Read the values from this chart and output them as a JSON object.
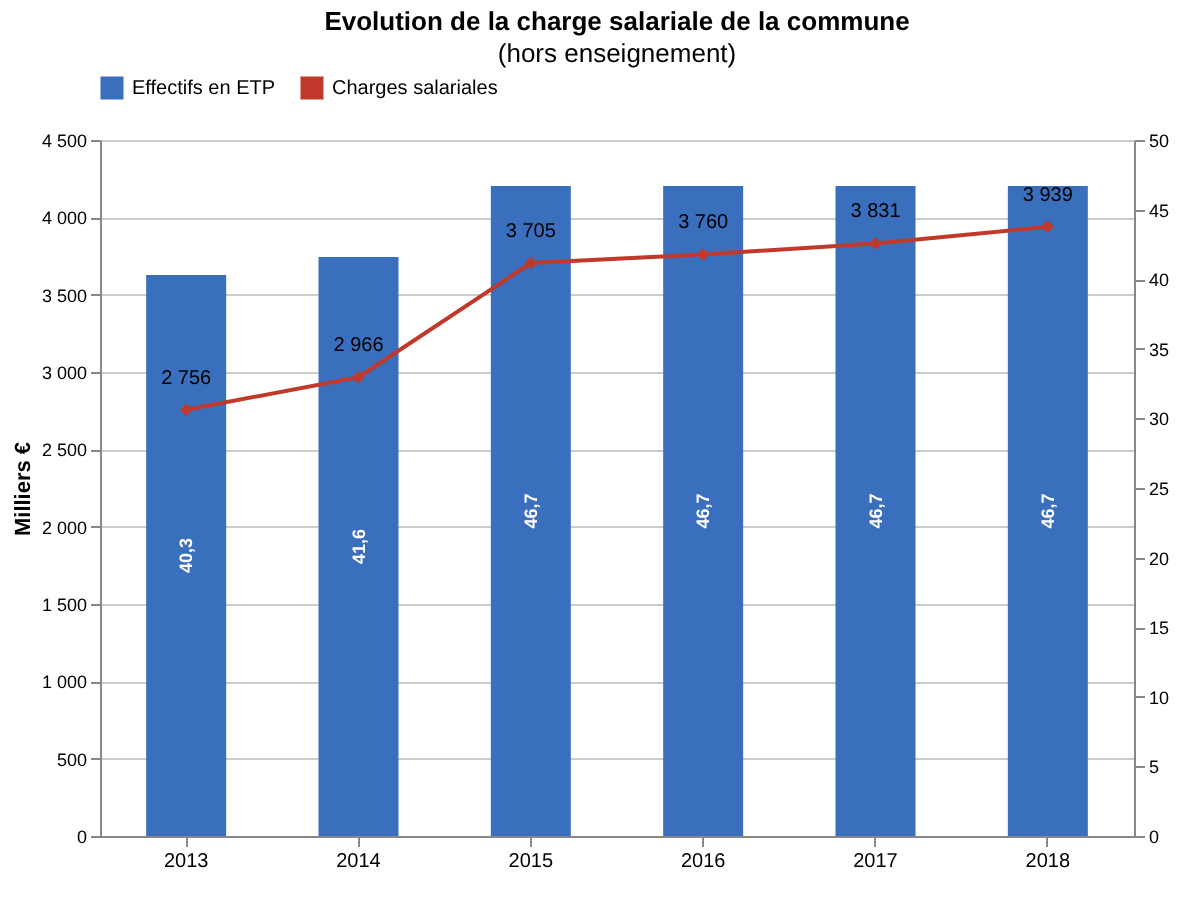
{
  "chart_data": {
    "type": "bar",
    "title": "Evolution de la charge salariale de la commune",
    "subtitle": "(hors enseignement)",
    "categories": [
      "2013",
      "2014",
      "2015",
      "2016",
      "2017",
      "2018"
    ],
    "series": [
      {
        "name": "Effectifs en ETP",
        "axis": "y2",
        "color": "#3a6fbd",
        "values": [
          40.3,
          41.6,
          46.7,
          46.7,
          46.7,
          46.7
        ],
        "value_labels": [
          "40,3",
          "41,6",
          "46,7",
          "46,7",
          "46,7",
          "46,7"
        ]
      },
      {
        "name": "Charges salariales",
        "type": "line",
        "axis": "y",
        "color": "#c0392b",
        "marker": "diamond",
        "values": [
          2756,
          2966,
          3705,
          3760,
          3831,
          3939
        ],
        "value_labels": [
          "2 756",
          "2 966",
          "3 705",
          "3 760",
          "3 831",
          "3 939"
        ]
      }
    ],
    "ylabel": "Milliers €",
    "ylim": [
      0,
      4500
    ],
    "yticks": [
      0,
      500,
      {
        "value": 1000,
        "label": "1 000"
      },
      {
        "value": 1500,
        "label": "1 500"
      },
      {
        "value": 2000,
        "label": "2 000"
      },
      {
        "value": 2500,
        "label": "2 500"
      },
      {
        "value": 3000,
        "label": "3 000"
      },
      {
        "value": 3500,
        "label": "3 500"
      },
      {
        "value": 4000,
        "label": "4 000"
      },
      {
        "value": 4500,
        "label": "4 500"
      }
    ],
    "y2lim": [
      0,
      50
    ],
    "y2ticks": [
      0,
      5,
      10,
      15,
      20,
      25,
      30,
      35,
      40,
      45,
      50
    ],
    "grid": "y",
    "legend": "top"
  }
}
